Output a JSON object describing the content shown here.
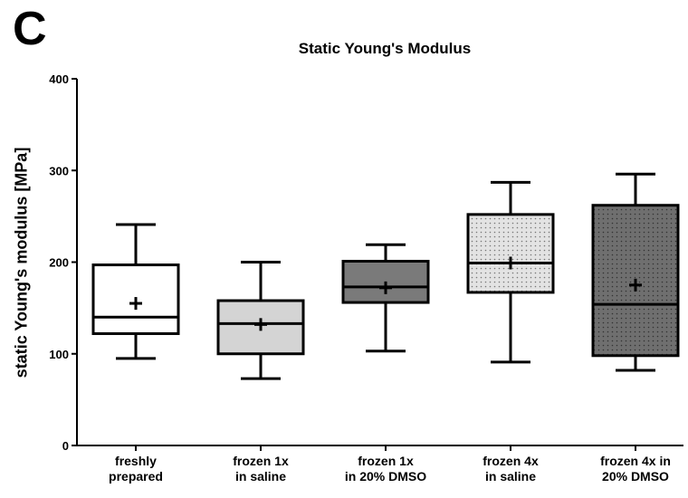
{
  "panel_letter": "C",
  "chart_data": {
    "type": "box",
    "title": "Static Young's Modulus",
    "xlabel": "",
    "ylabel": "static Young's modulus [MPa]",
    "ylim": [
      0,
      400
    ],
    "yticks": [
      0,
      100,
      200,
      300,
      400
    ],
    "grid": false,
    "categories": [
      [
        "freshly",
        "prepared"
      ],
      [
        "frozen 1x",
        "in saline"
      ],
      [
        "frozen 1x",
        "in 20% DMSO"
      ],
      [
        "frozen 4x",
        "in saline"
      ],
      [
        "frozen 4x in",
        "20% DMSO"
      ]
    ],
    "boxes": [
      {
        "min": 95,
        "q1": 122,
        "median": 140,
        "q3": 197,
        "max": 241,
        "mean": 155,
        "fill": "#ffffff",
        "pattern": "none"
      },
      {
        "min": 73,
        "q1": 100,
        "median": 133,
        "q3": 158,
        "max": 200,
        "mean": 132,
        "fill": "#d4d4d4",
        "pattern": "none"
      },
      {
        "min": 103,
        "q1": 156,
        "median": 173,
        "q3": 201,
        "max": 219,
        "mean": 172,
        "fill": "#7a7a7a",
        "pattern": "none"
      },
      {
        "min": 91,
        "q1": 167,
        "median": 199,
        "q3": 252,
        "max": 287,
        "mean": 199,
        "fill": "#d9d9d9",
        "pattern": "dots"
      },
      {
        "min": 82,
        "q1": 98,
        "median": 154,
        "q3": 262,
        "max": 296,
        "mean": 175,
        "fill": "#6f6f6f",
        "pattern": "dots-dark"
      }
    ]
  }
}
